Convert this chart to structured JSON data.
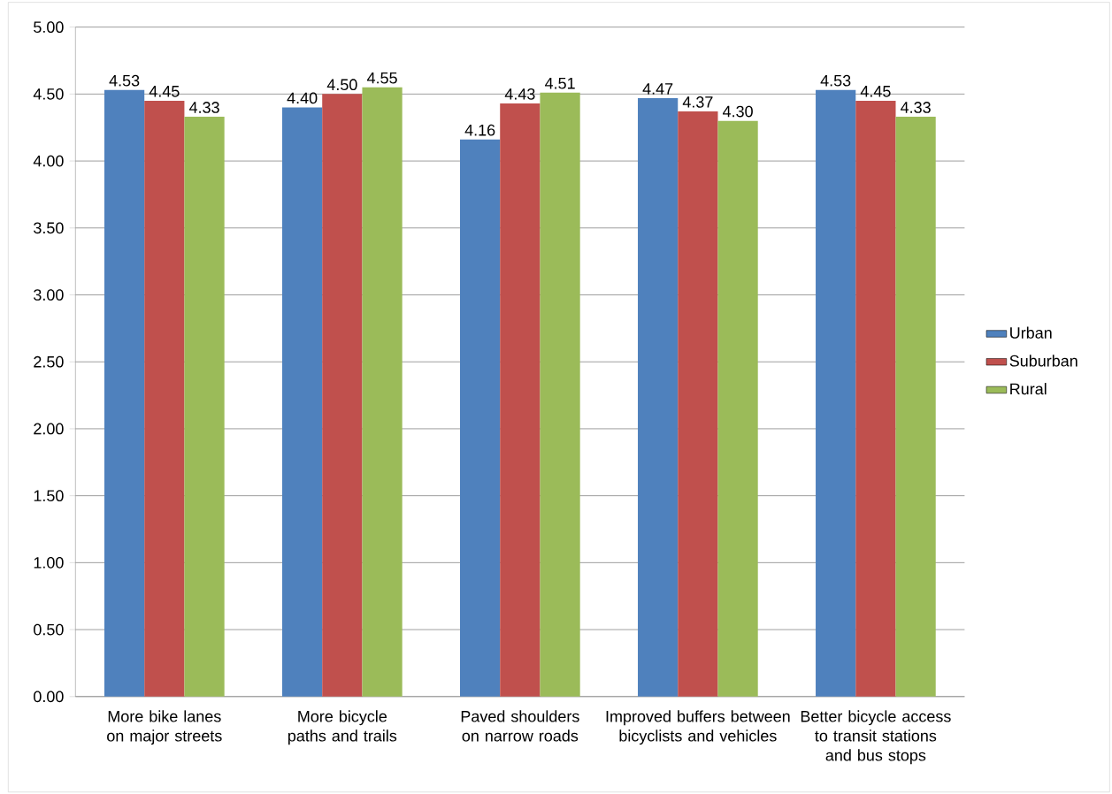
{
  "chart_data": {
    "type": "bar",
    "categories": [
      "More bike lanes on major streets",
      "More bicycle paths and trails",
      "Paved shoulders on narrow roads",
      "Improved buffers between bicyclists and vehicles",
      "Better bicycle access to transit stations and bus stops"
    ],
    "series": [
      {
        "name": "Urban",
        "color": "#4f81bd",
        "values": [
          4.53,
          4.4,
          4.16,
          4.47,
          4.53
        ],
        "value_labels": [
          "4.53",
          "4.40",
          "4.16",
          "4.47",
          "4.53"
        ]
      },
      {
        "name": "Suburban",
        "color": "#c0504d",
        "values": [
          4.45,
          4.5,
          4.43,
          4.37,
          4.45
        ],
        "value_labels": [
          "4.45",
          "4.50",
          "4.43",
          "4.37",
          "4.45"
        ]
      },
      {
        "name": "Rural",
        "color": "#9bbb59",
        "values": [
          4.33,
          4.55,
          4.51,
          4.3,
          4.33
        ],
        "value_labels": [
          "4.33",
          "4.55",
          "4.51",
          "4.30",
          "4.33"
        ]
      }
    ],
    "ylim": [
      0,
      5
    ],
    "yticks": [
      {
        "value": 0,
        "label": "0.00"
      },
      {
        "value": 0.5,
        "label": "0.50"
      },
      {
        "value": 1,
        "label": "1.00"
      },
      {
        "value": 1.5,
        "label": "1.50"
      },
      {
        "value": 2,
        "label": "2.00"
      },
      {
        "value": 2.5,
        "label": "2.50"
      },
      {
        "value": 3,
        "label": "3.00"
      },
      {
        "value": 3.5,
        "label": "3.50"
      },
      {
        "value": 4,
        "label": "4.00"
      },
      {
        "value": 4.5,
        "label": "4.50"
      },
      {
        "value": 5,
        "label": "5.00"
      }
    ],
    "grid": "y",
    "legend": "right"
  }
}
